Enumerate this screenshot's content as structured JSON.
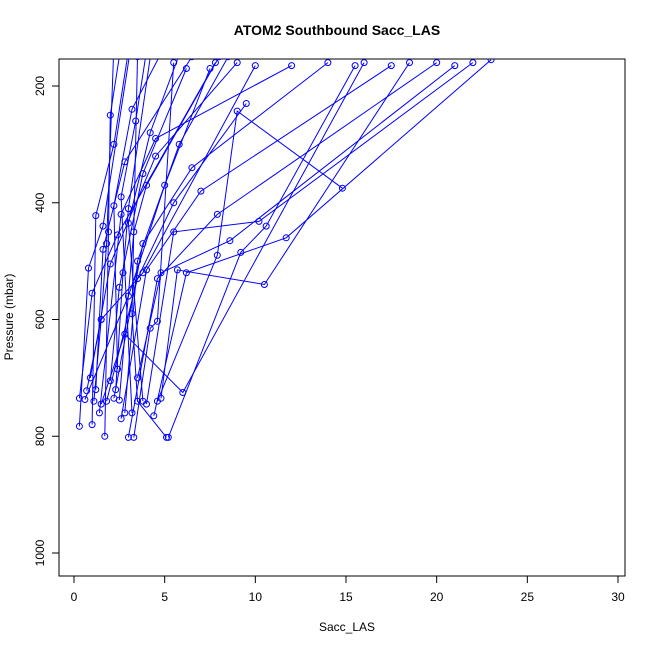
{
  "chart_data": {
    "type": "scatter",
    "title": "ATOM2 Southbound Sacc_LAS",
    "xlabel": "Sacc_LAS",
    "ylabel": "Pressure (mbar)",
    "xlim": [
      0,
      30
    ],
    "ylim": [
      1000,
      200
    ],
    "y_reversed": true,
    "x_ticks": [
      0,
      5,
      10,
      15,
      20,
      25,
      30
    ],
    "y_ticks": [
      200,
      400,
      600,
      800,
      1000
    ],
    "grid": false,
    "color": "#0000ff",
    "series": [
      {
        "x": [
          0.6,
          3.0,
          5.0,
          7.5
        ],
        "y": [
          737,
          560,
          370,
          170
        ]
      },
      {
        "x": [
          0.9,
          2.0,
          4.5,
          9.0
        ],
        "y": [
          700,
          505,
          320,
          160
        ]
      },
      {
        "x": [
          1.0,
          1.2,
          2.2,
          3.0
        ],
        "y": [
          780,
          422,
          300,
          140
        ]
      },
      {
        "x": [
          1.2,
          1.6,
          2.8,
          6.5
        ],
        "y": [
          720,
          480,
          330,
          150
        ]
      },
      {
        "x": [
          1.4,
          2.6,
          4.5,
          12.0
        ],
        "y": [
          760,
          420,
          290,
          165
        ]
      },
      {
        "x": [
          1.7,
          1.9,
          2.0,
          2.6
        ],
        "y": [
          800,
          450,
          250,
          130
        ]
      },
      {
        "x": [
          1.8,
          3.5,
          5.5,
          9.5
        ],
        "y": [
          740,
          530,
          400,
          230
        ]
      },
      {
        "x": [
          2.0,
          2.5,
          3.8,
          6.2
        ],
        "y": [
          705,
          545,
          350,
          170
        ]
      },
      {
        "x": [
          2.2,
          3.8,
          6.5,
          14.0
        ],
        "y": [
          735,
          470,
          340,
          160
        ]
      },
      {
        "x": [
          2.4,
          2.2,
          3.2,
          5.2
        ],
        "y": [
          685,
          405,
          240,
          120
        ]
      },
      {
        "x": [
          2.6,
          4.0,
          7.0,
          17.5
        ],
        "y": [
          770,
          515,
          380,
          165
        ]
      },
      {
        "x": [
          2.8,
          3.5,
          5.8,
          8.5
        ],
        "y": [
          760,
          500,
          300,
          150
        ]
      },
      {
        "x": [
          3.0,
          4.6,
          7.9,
          20.0
        ],
        "y": [
          802,
          530,
          420,
          160
        ]
      },
      {
        "x": [
          3.2,
          2.6,
          3.4,
          4.0
        ],
        "y": [
          760,
          390,
          260,
          140
        ]
      },
      {
        "x": [
          3.5,
          4.8,
          8.6,
          21.0
        ],
        "y": [
          700,
          520,
          465,
          165
        ]
      },
      {
        "x": [
          3.8,
          3.0,
          4.2,
          6.0
        ],
        "y": [
          740,
          435,
          280,
          130
        ]
      },
      {
        "x": [
          4.0,
          5.5,
          10.2,
          22.0
        ],
        "y": [
          745,
          450,
          432,
          160
        ]
      },
      {
        "x": [
          4.4,
          6.2,
          11.7,
          23.0
        ],
        "y": [
          765,
          520,
          460,
          155
        ]
      },
      {
        "x": [
          4.8,
          5.7,
          10.5,
          18.5
        ],
        "y": [
          735,
          515,
          540,
          160
        ]
      },
      {
        "x": [
          5.2,
          9.2,
          10.6,
          15.5
        ],
        "y": [
          802,
          485,
          440,
          165
        ]
      },
      {
        "x": [
          0.3,
          1.0,
          2.4,
          7.8
        ],
        "y": [
          735,
          555,
          455,
          160
        ]
      },
      {
        "x": [
          0.3,
          0.8,
          1.6,
          3.2
        ],
        "y": [
          783,
          512,
          440,
          120
        ]
      },
      {
        "x": [
          0.7,
          1.5,
          3.8,
          10.0
        ],
        "y": [
          722,
          600,
          520,
          165
        ]
      },
      {
        "x": [
          1.1,
          1.5,
          1.8,
          2.2
        ],
        "y": [
          740,
          600,
          470,
          130
        ]
      },
      {
        "x": [
          1.5,
          2.8,
          6.0,
          16.0
        ],
        "y": [
          745,
          625,
          725,
          160
        ]
      },
      {
        "x": [
          2.3,
          2.7,
          3.0,
          4.3
        ],
        "y": [
          720,
          520,
          410,
          130
        ]
      },
      {
        "x": [
          2.5,
          3.3,
          4.0,
          8.0
        ],
        "y": [
          738,
          450,
          370,
          150
        ]
      },
      {
        "x": [
          3.3,
          4.2,
          4.6,
          5.5
        ],
        "y": [
          802,
          615,
          603,
          160
        ]
      },
      {
        "x": [
          4.6,
          7.9,
          9.0,
          14.8
        ],
        "y": [
          740,
          490,
          243,
          375
        ]
      },
      {
        "x": [
          5.1,
          3.5,
          3.2,
          3.5
        ],
        "y": [
          802,
          740,
          590,
          150
        ]
      }
    ]
  }
}
